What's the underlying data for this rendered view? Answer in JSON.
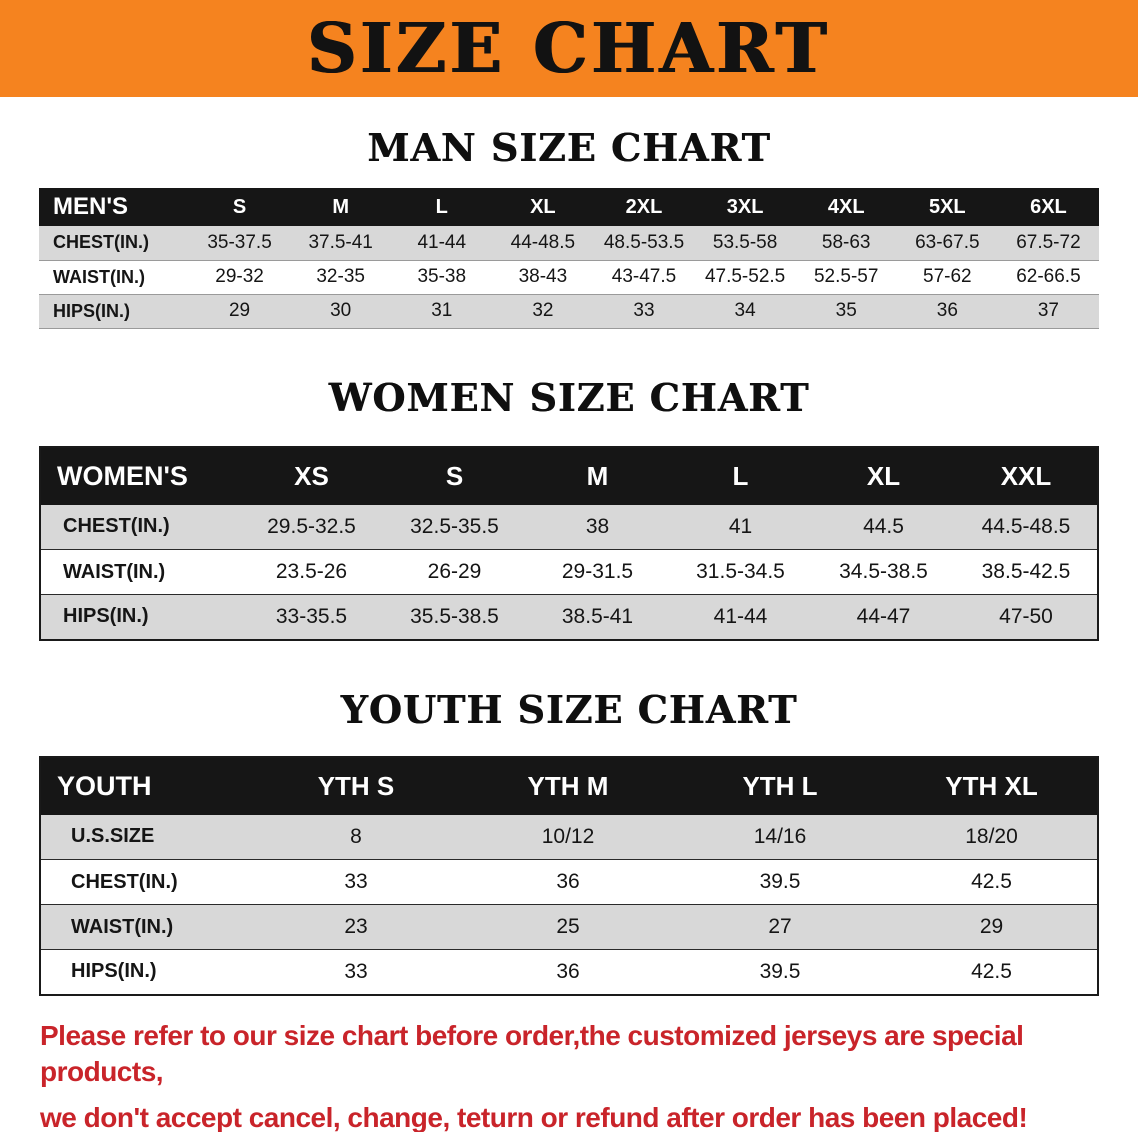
{
  "banner": {
    "title": "SIZE CHART",
    "bg_color": "#f5831f",
    "text_color": "#121212"
  },
  "colors": {
    "table_header_bg": "#161616",
    "row_stripe": "#d8d8d8",
    "notice_red": "#c9242a"
  },
  "sections": {
    "men": {
      "heading": "MAN SIZE CHART",
      "table": {
        "header": [
          "MEN'S",
          "S",
          "M",
          "L",
          "XL",
          "2XL",
          "3XL",
          "4XL",
          "5XL",
          "6XL"
        ],
        "rows": [
          [
            "CHEST(IN.)",
            "35-37.5",
            "37.5-41",
            "41-44",
            "44-48.5",
            "48.5-53.5",
            "53.5-58",
            "58-63",
            "63-67.5",
            "67.5-72"
          ],
          [
            "WAIST(IN.)",
            "29-32",
            "32-35",
            "35-38",
            "38-43",
            "43-47.5",
            "47.5-52.5",
            "52.5-57",
            "57-62",
            "62-66.5"
          ],
          [
            "HIPS(IN.)",
            "29",
            "30",
            "31",
            "32",
            "33",
            "34",
            "35",
            "36",
            "37"
          ]
        ]
      }
    },
    "women": {
      "heading": "WOMEN SIZE CHART",
      "table": {
        "header": [
          "WOMEN'S",
          "XS",
          "S",
          "M",
          "L",
          "XL",
          "XXL"
        ],
        "rows": [
          [
            "CHEST(IN.)",
            "29.5-32.5",
            "32.5-35.5",
            "38",
            "41",
            "44.5",
            "44.5-48.5"
          ],
          [
            "WAIST(IN.)",
            "23.5-26",
            "26-29",
            "29-31.5",
            "31.5-34.5",
            "34.5-38.5",
            "38.5-42.5"
          ],
          [
            "HIPS(IN.)",
            "33-35.5",
            "35.5-38.5",
            "38.5-41",
            "41-44",
            "44-47",
            "47-50"
          ]
        ]
      }
    },
    "youth": {
      "heading": "YOUTH SIZE CHART",
      "table": {
        "header": [
          "YOUTH",
          "YTH S",
          "YTH M",
          "YTH L",
          "YTH XL"
        ],
        "rows": [
          [
            "U.S.SIZE",
            "8",
            "10/12",
            "14/16",
            "18/20"
          ],
          [
            "CHEST(IN.)",
            "33",
            "36",
            "39.5",
            "42.5"
          ],
          [
            "WAIST(IN.)",
            "23",
            "25",
            "27",
            "29"
          ],
          [
            "HIPS(IN.)",
            "33",
            "36",
            "39.5",
            "42.5"
          ]
        ]
      }
    }
  },
  "footer": {
    "line1": "Please refer to our size chart before order,the customized jerseys are special products,",
    "line2": "we don't accept cancel, change, teturn or refund after order has been placed!"
  }
}
